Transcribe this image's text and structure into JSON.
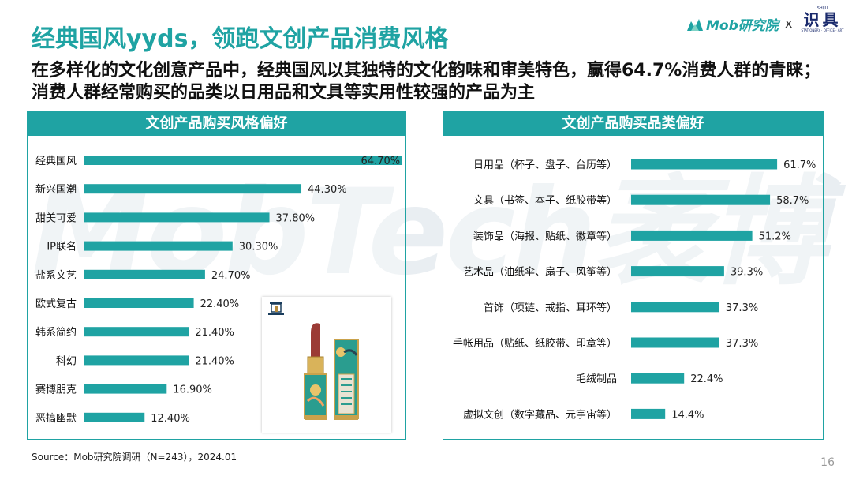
{
  "watermark": "MobTech袤博",
  "header": {
    "title": "经典国风yyds，领跑文创产品消费风格",
    "subtitle": "在多样化的文化创意产品中，经典国风以其独特的文化韵味和审美特色，赢得64.7%消费人群的青睐；消费人群经常购买的品类以日用品和文具等实用性较强的产品为主"
  },
  "logos": {
    "mob_text": "Mob研究院",
    "separator": "x",
    "shiju_small": "SHIJU",
    "shiju_big": "识具",
    "shiju_tagline": "STATIONERY · OFFICE · ART"
  },
  "colors": {
    "accent": "#1fa3a3",
    "bar": "#1fa3a3",
    "text": "#111111"
  },
  "chart_data": [
    {
      "type": "bar",
      "orientation": "horizontal",
      "title": "文创产品购买风格偏好",
      "categories": [
        "经典国风",
        "新兴国潮",
        "甜美可爱",
        "IP联名",
        "盐系文艺",
        "欧式复古",
        "韩系简约",
        "科幻",
        "赛博朋克",
        "恶搞幽默"
      ],
      "values": [
        64.7,
        44.3,
        37.8,
        30.3,
        24.7,
        22.4,
        21.4,
        21.4,
        16.9,
        12.4
      ],
      "value_labels": [
        "64.70%",
        "44.30%",
        "37.80%",
        "30.30%",
        "24.70%",
        "22.40%",
        "21.40%",
        "21.40%",
        "16.90%",
        "12.40%"
      ],
      "xlim": [
        0,
        65
      ]
    },
    {
      "type": "bar",
      "orientation": "horizontal",
      "title": "文创产品购买品类偏好",
      "categories": [
        "日用品（杯子、盘子、台历等）",
        "文具（书签、本子、纸胶带等）",
        "装饰品（海报、贴纸、徽章等）",
        "艺术品（油纸伞、扇子、风筝等）",
        "首饰（项链、戒指、耳环等）",
        "手帐用品（贴纸、纸胶带、印章等）",
        "毛绒制品",
        "虚拟文创（数字藏品、元宇宙等）"
      ],
      "values": [
        61.7,
        58.7,
        51.2,
        39.3,
        37.3,
        37.3,
        22.4,
        14.4
      ],
      "value_labels": [
        "61.7%",
        "58.7%",
        "51.2%",
        "39.3%",
        "37.3%",
        "37.3%",
        "22.4%",
        "14.4%"
      ],
      "xlim": [
        0,
        70
      ]
    }
  ],
  "product_image": {
    "description_icon": "lipstick-icon"
  },
  "footer": {
    "source": "Source：Mob研究院调研（N=243），2024.01",
    "page_number": "16"
  }
}
